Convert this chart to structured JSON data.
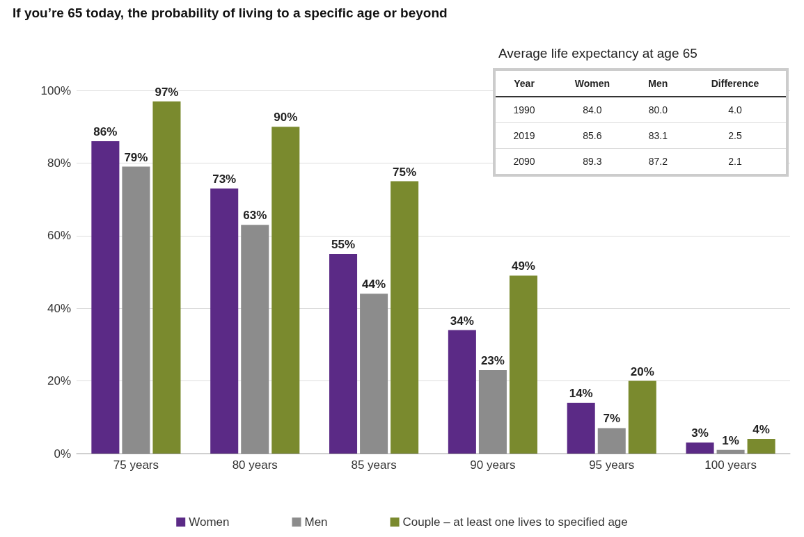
{
  "chart_data": {
    "type": "bar",
    "title": "If you’re 65 today, the probability of living to a specific age or beyond",
    "categories": [
      "75 years",
      "80 years",
      "85 years",
      "90 years",
      "95 years",
      "100 years"
    ],
    "series": [
      {
        "name": "Women",
        "color": "#5b2a86",
        "values": [
          86,
          73,
          55,
          34,
          14,
          3
        ],
        "value_labels": [
          "86%",
          "73%",
          "55%",
          "34%",
          "14%",
          "3%"
        ]
      },
      {
        "name": "Men",
        "color": "#8c8c8c",
        "values": [
          79,
          63,
          44,
          23,
          7,
          1
        ],
        "value_labels": [
          "79%",
          "63%",
          "44%",
          "23%",
          "7%",
          "1%"
        ]
      },
      {
        "name": "Couple – at least one lives to specified age",
        "color": "#7a8a2e",
        "values": [
          97,
          90,
          75,
          49,
          20,
          4
        ],
        "value_labels": [
          "97%",
          "90%",
          "75%",
          "49%",
          "20%",
          "4%"
        ]
      }
    ],
    "ylim": [
      0,
      100
    ],
    "yticks": [
      {
        "value": 0,
        "label": "0%"
      },
      {
        "value": 20,
        "label": "20%"
      },
      {
        "value": 40,
        "label": "40%"
      },
      {
        "value": 60,
        "label": "60%"
      },
      {
        "value": 80,
        "label": "80%"
      },
      {
        "value": 100,
        "label": "100%"
      }
    ],
    "grid": "y",
    "legend": "bottom",
    "annotations": [
      "Average life expectancy at age 65",
      "Year",
      "Women",
      "Men",
      "Difference",
      "1990",
      "84.0",
      "80.0",
      "4.0",
      "2019",
      "85.6",
      "83.1",
      "2.5",
      "2090",
      "89.3",
      "87.2",
      "2.1"
    ]
  }
}
